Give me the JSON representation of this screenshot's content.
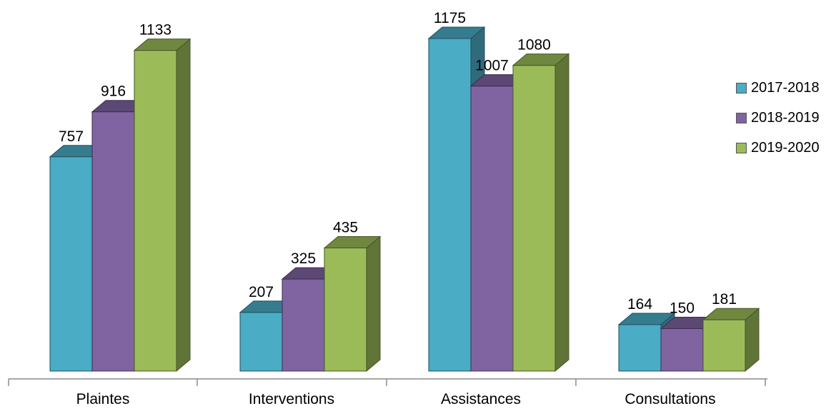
{
  "chart_data": {
    "type": "bar",
    "categories": [
      "Plaintes",
      "Interventions",
      "Assistances",
      "Consultations"
    ],
    "series": [
      {
        "name": "2017-2018",
        "values": [
          757,
          207,
          1175,
          164
        ],
        "color": "#4BACC6"
      },
      {
        "name": "2018-2019",
        "values": [
          916,
          325,
          1007,
          150
        ],
        "color": "#8064A2"
      },
      {
        "name": "2019-2020",
        "values": [
          1133,
          435,
          1080,
          181
        ],
        "color": "#9BBB59"
      }
    ],
    "data_labels": true,
    "legend_position": "right",
    "grid": false,
    "ylim": [
      0,
      1300
    ],
    "style": "3d-clustered-column"
  }
}
